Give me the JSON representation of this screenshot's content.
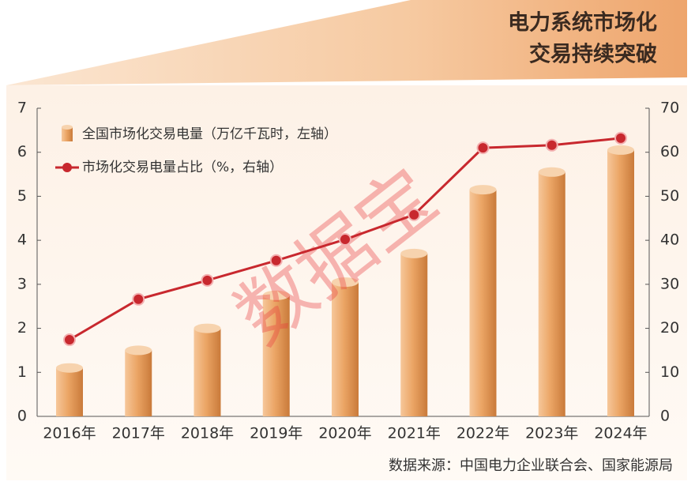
{
  "chart_data": {
    "type": "bar_line",
    "title_lines": [
      "电力系统市场化",
      "交易持续突破"
    ],
    "categories": [
      "2016年",
      "2017年",
      "2018年",
      "2019年",
      "2020年",
      "2021年",
      "2022年",
      "2023年",
      "2024年"
    ],
    "series": [
      {
        "name": "全国市场化交易电量（万亿千瓦时，左轴）",
        "type": "bar",
        "color": "#e9a96a",
        "values": [
          1.1,
          1.5,
          2.0,
          2.75,
          3.05,
          3.7,
          5.15,
          5.55,
          6.05
        ]
      },
      {
        "name": "市场化交易电量占比（%，右轴）",
        "type": "line",
        "axis": "y2",
        "color": "#c8282e",
        "values": [
          17.4,
          26.6,
          30.9,
          35.4,
          40.2,
          45.8,
          61.0,
          61.6,
          63.2
        ]
      }
    ],
    "ylim": [
      0,
      7
    ],
    "yticks": [
      0,
      1,
      2,
      3,
      4,
      5,
      6,
      7
    ],
    "y2lim": [
      0,
      70
    ],
    "y2ticks": [
      0,
      10,
      20,
      30,
      40,
      50,
      60,
      70
    ],
    "source": "数据来源：中国电力企业联合会、国家能源局",
    "watermark": "数据宝"
  }
}
